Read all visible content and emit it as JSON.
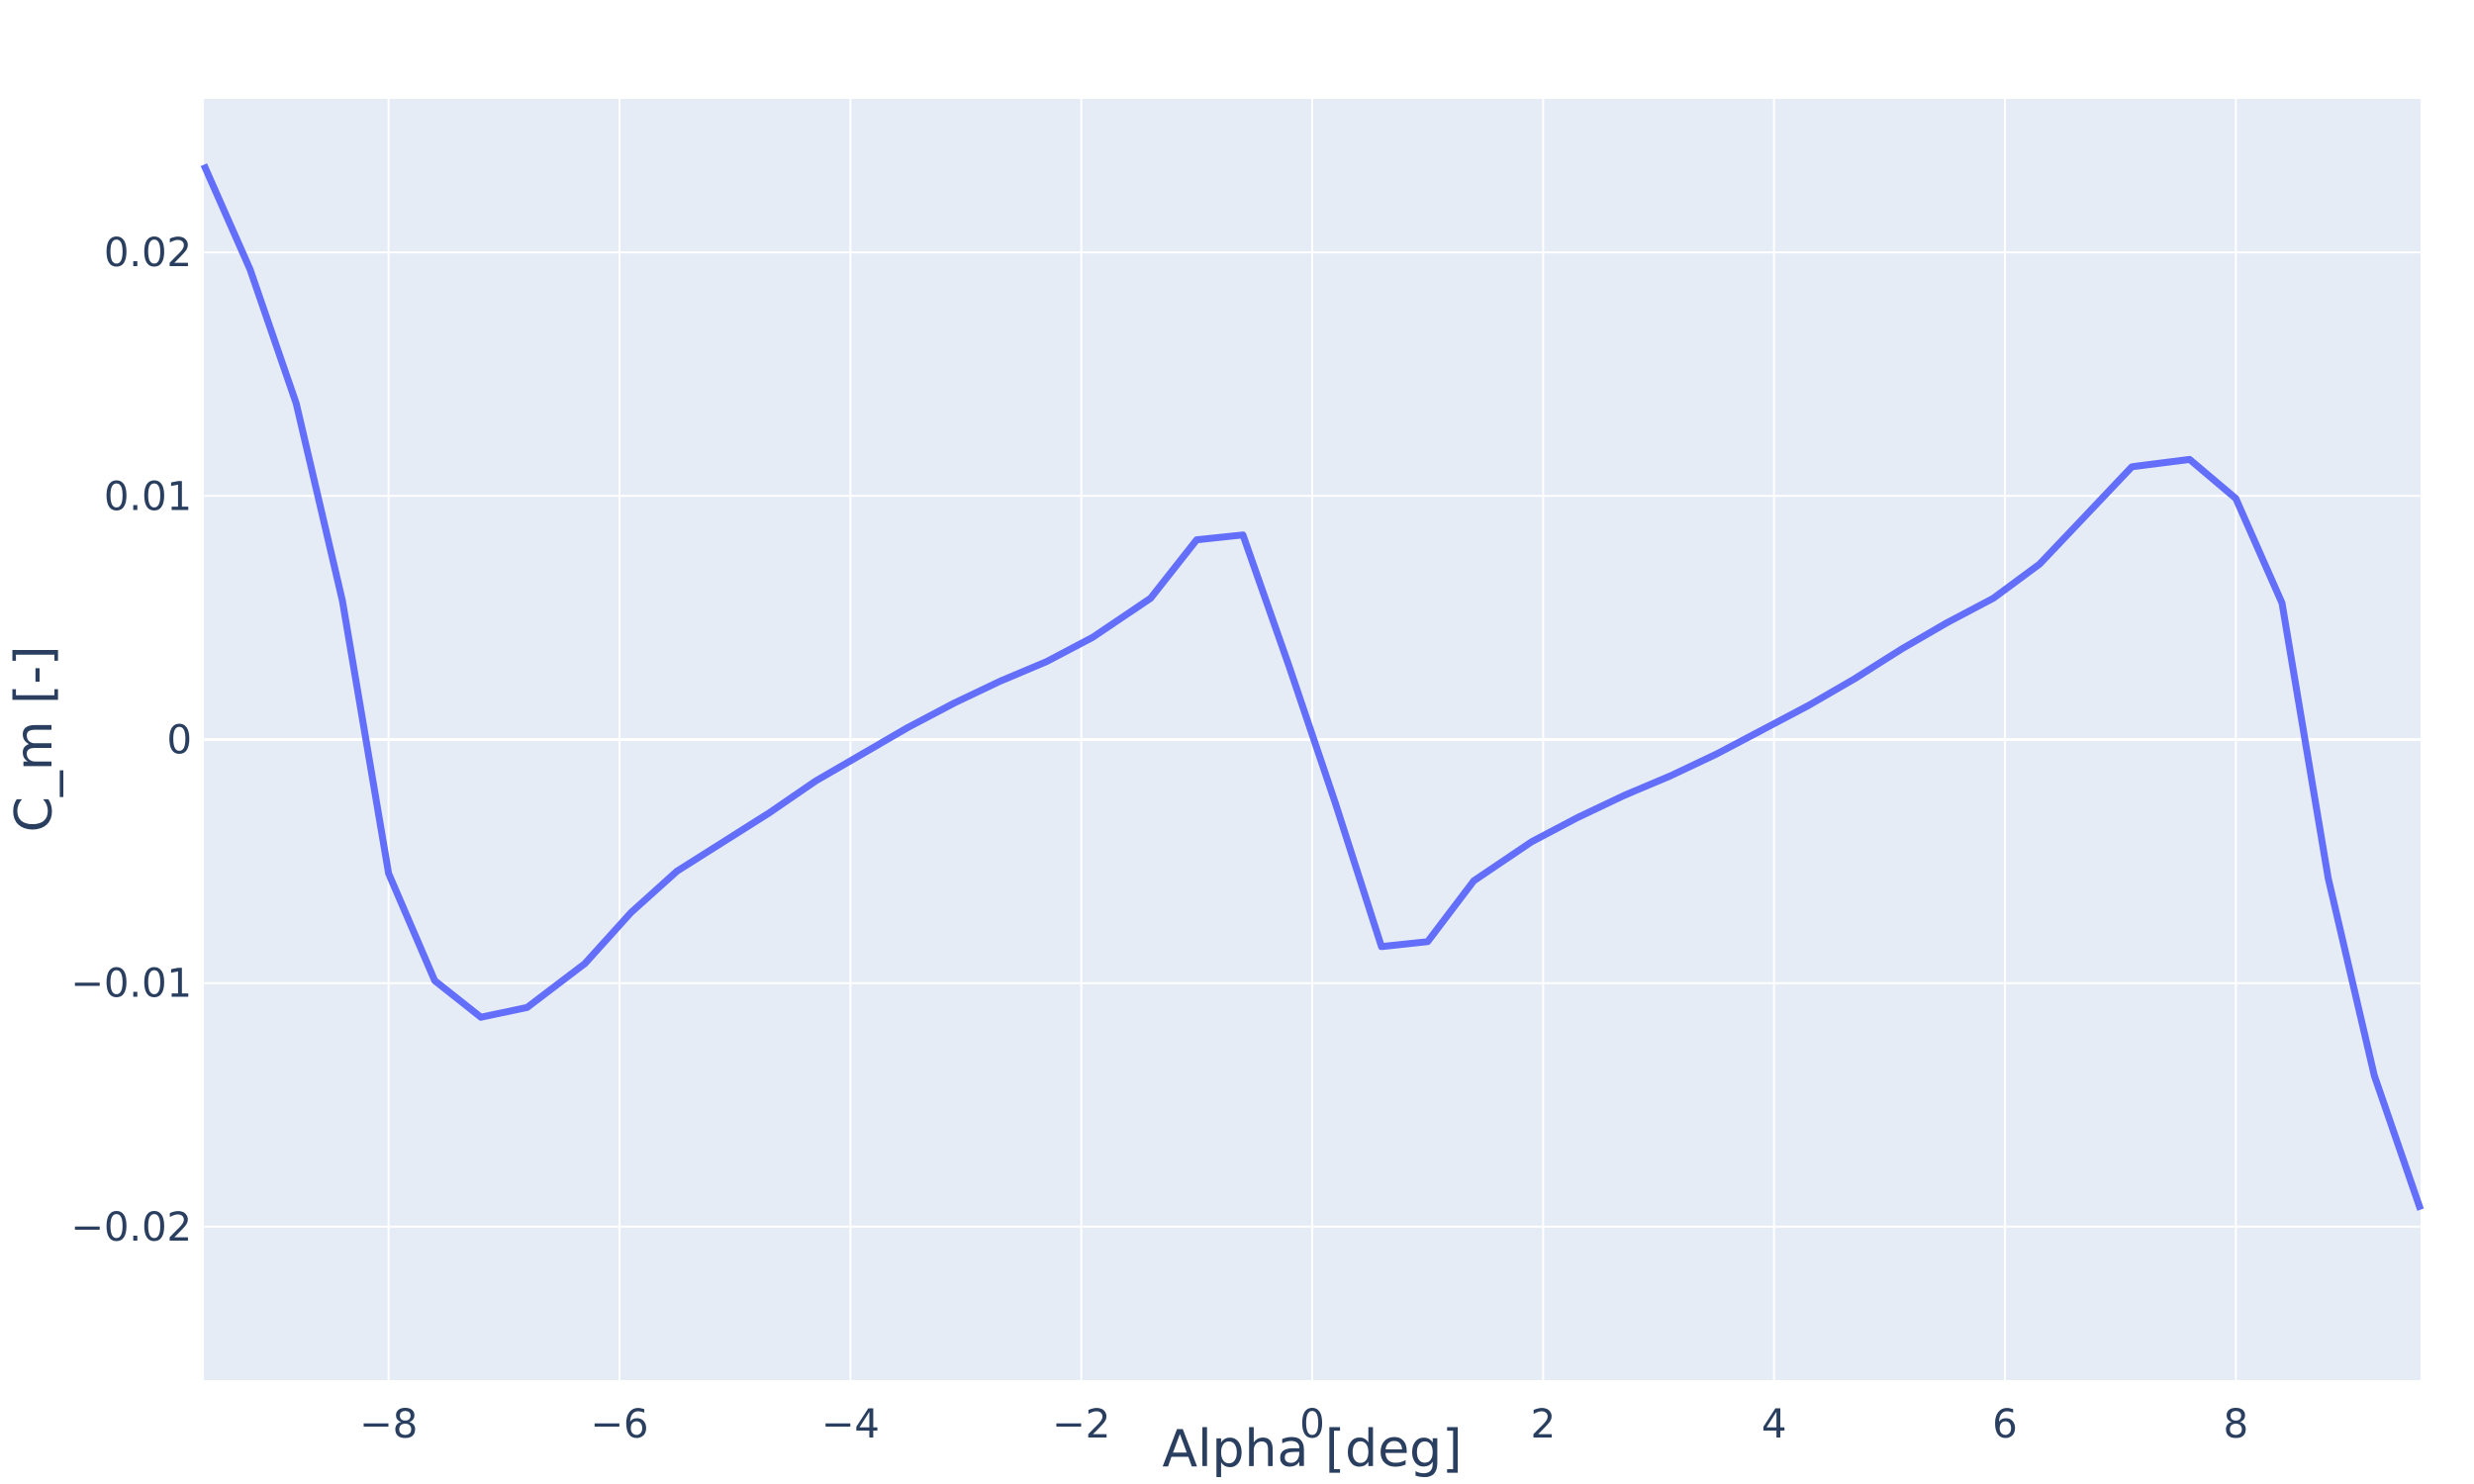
{
  "chart_data": {
    "type": "line",
    "title": "",
    "xlabel": "Alpha [deg]",
    "ylabel": "C_m [-]",
    "xlim": [
      -9.6,
      9.6
    ],
    "ylim": [
      -0.0263,
      0.0263
    ],
    "x_ticks": [
      -8,
      -6,
      -4,
      -2,
      0,
      2,
      4,
      6,
      8
    ],
    "x_tick_labels": [
      "−8",
      "−6",
      "−4",
      "−2",
      "0",
      "2",
      "4",
      "6",
      "8"
    ],
    "y_ticks": [
      -0.02,
      -0.01,
      0,
      0.01,
      0.02
    ],
    "y_tick_labels": [
      "−0.02",
      "−0.01",
      "0",
      "0.01",
      "0.02"
    ],
    "grid": true,
    "colors": {
      "plot_bg": "#e5ecf6",
      "grid": "#ffffff",
      "line": "#636efa",
      "text": "#2a3f5f"
    },
    "series": [
      {
        "x": [
          -9.6,
          -9.2,
          -8.8,
          -8.4,
          -8.0,
          -7.6,
          -7.2,
          -6.8,
          -6.3,
          -5.9,
          -5.5,
          -5.1,
          -4.7,
          -4.3,
          -3.9,
          -3.5,
          -3.1,
          -2.7,
          -2.3,
          -1.9,
          -1.4,
          -1.0,
          -0.6,
          -0.2,
          0.2,
          0.6,
          1.0,
          1.4,
          1.9,
          2.3,
          2.7,
          3.1,
          3.5,
          3.9,
          4.3,
          4.7,
          5.1,
          5.5,
          5.9,
          6.3,
          6.7,
          7.1,
          7.6,
          8.0,
          8.4,
          8.8,
          9.2,
          9.6
        ],
        "y": [
          0.0236,
          0.0193,
          0.0138,
          0.0057,
          -0.0055,
          -0.0099,
          -0.0114,
          -0.011,
          -0.0092,
          -0.0071,
          -0.0054,
          -0.0042,
          -0.003,
          -0.0017,
          -0.0006,
          0.0005,
          0.0015,
          0.0024,
          0.0032,
          0.0042,
          0.0058,
          0.0082,
          0.0084,
          0.003,
          -0.0026,
          -0.0085,
          -0.0083,
          -0.0058,
          -0.0042,
          -0.0032,
          -0.0023,
          -0.0015,
          -0.0006,
          0.0004,
          0.0014,
          0.0025,
          0.0037,
          0.0048,
          0.0058,
          0.0072,
          0.0092,
          0.0112,
          0.0115,
          0.0099,
          0.0056,
          -0.0057,
          -0.0138,
          -0.0193
        ]
      }
    ]
  }
}
